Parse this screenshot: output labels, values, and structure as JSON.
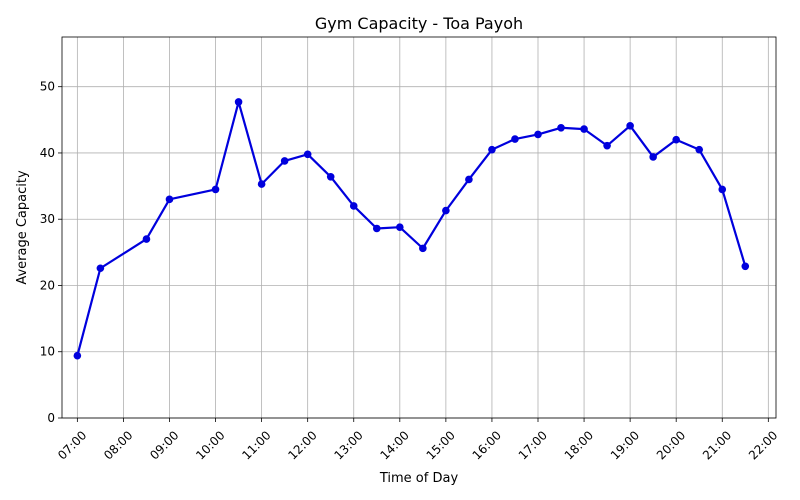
{
  "chart_data": {
    "type": "line",
    "title": "Gym Capacity - Toa Payoh",
    "xlabel": "Time of Day",
    "ylabel": "Average Capacity",
    "xlim": [
      "06:40",
      "22:10"
    ],
    "ylim": [
      0,
      57.5
    ],
    "x_ticks": [
      "07:00",
      "08:00",
      "09:00",
      "10:00",
      "11:00",
      "12:00",
      "13:00",
      "14:00",
      "15:00",
      "16:00",
      "17:00",
      "18:00",
      "19:00",
      "20:00",
      "21:00",
      "22:00"
    ],
    "y_ticks": [
      0,
      10,
      20,
      30,
      40,
      50
    ],
    "grid": true,
    "series": [
      {
        "color": "#0000dd",
        "marker": "circle",
        "x": [
          "07:00",
          "07:30",
          "08:30",
          "09:00",
          "10:00",
          "10:30",
          "11:00",
          "11:30",
          "12:00",
          "12:30",
          "13:00",
          "13:30",
          "14:00",
          "14:30",
          "15:00",
          "15:30",
          "16:00",
          "16:30",
          "17:00",
          "17:30",
          "18:00",
          "18:30",
          "19:00",
          "19:30",
          "20:00",
          "20:30",
          "21:00",
          "21:30"
        ],
        "values": [
          9.4,
          22.6,
          27.0,
          33.0,
          34.5,
          47.7,
          35.3,
          38.8,
          39.8,
          36.4,
          32.0,
          28.6,
          28.8,
          25.6,
          31.3,
          36.0,
          40.5,
          42.1,
          42.8,
          43.8,
          43.6,
          41.1,
          44.1,
          39.4,
          42.0,
          40.5,
          34.5,
          22.9
        ]
      }
    ]
  }
}
